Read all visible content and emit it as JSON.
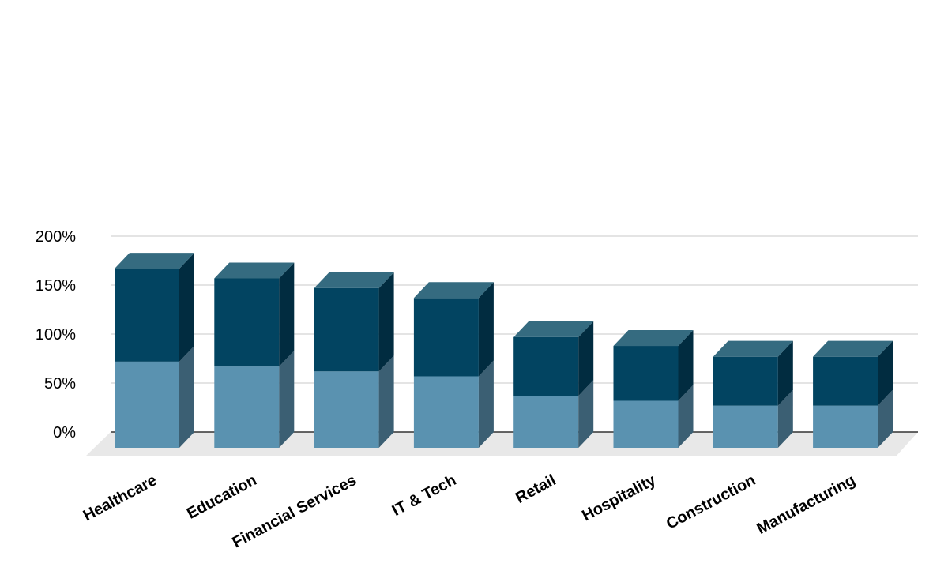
{
  "chart_data": {
    "type": "bar",
    "stacked": true,
    "three_d": true,
    "categories": [
      "Healthcare",
      "Education",
      "Financial Services",
      "IT & Tech",
      "Retail",
      "Hospitality",
      "Construction",
      "Manufacturing"
    ],
    "series": [
      {
        "values": [
          88,
          83,
          78,
          73,
          53,
          48,
          43,
          43
        ]
      },
      {
        "values": [
          95,
          90,
          85,
          80,
          60,
          56,
          50,
          50
        ]
      }
    ],
    "y_ticks": [
      "0%",
      "50%",
      "100%",
      "150%",
      "200%"
    ],
    "ylim": [
      0,
      200
    ],
    "grid": true,
    "legend": "none",
    "colors": {
      "series1_front": "#5a92b0",
      "series1_side": "#3b5f73",
      "series2_front": "#024461",
      "series2_side": "#012c40",
      "top": "#356b80",
      "floor": "#e8e8e8"
    }
  }
}
